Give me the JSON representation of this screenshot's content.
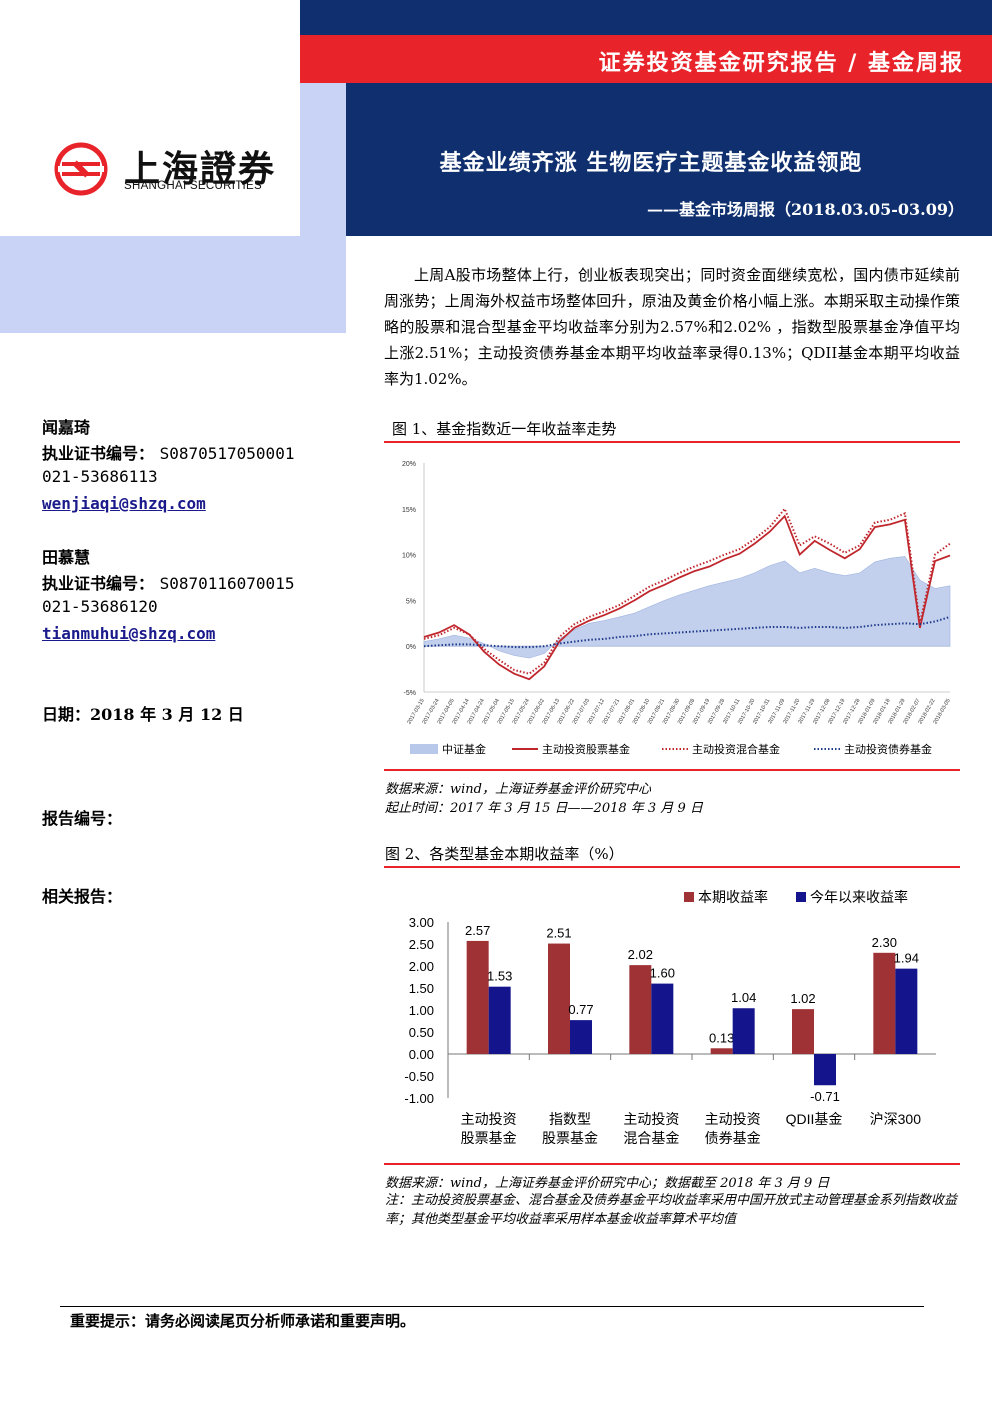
{
  "header": {
    "banner": "证券投资基金研究报告 / 基金周报",
    "title": "基金业绩齐涨  生物医疗主题基金收益领跑",
    "subtitle": "——基金市场周报（2018.03.05-03.09）",
    "colors": {
      "navy": "#0f2f6e",
      "red": "#e8232a",
      "light_blue": "#c9d3f5"
    }
  },
  "logo": {
    "cn": "上海證券",
    "en": "SHANGHAI SECURITIES",
    "icon": "shanghai-securities-logo-icon"
  },
  "analysts": [
    {
      "name": "闻嘉琦",
      "cert_label": "执业证书编号：",
      "cert": "S0870517050001",
      "phone": "021-53686113",
      "email": "wenjiaqi@shzq.com"
    },
    {
      "name": "田慕慧",
      "cert_label": "执业证书编号：",
      "cert": "S0870116070015",
      "phone": "021-53686120",
      "email": "tianmuhui@shzq.com"
    }
  ],
  "meta": {
    "date": "日期：2018 年 3 月 12 日",
    "report_no": "报告编号：",
    "related": "相关报告："
  },
  "summary": "上周A股市场整体上行，创业板表现突出；同时资金面继续宽松，国内债市延续前周涨势；上周海外权益市场整体回升，原油及黄金价格小幅上涨。本期采取主动操作策略的股票和混合型基金平均收益率分别为2.57%和2.02% ，指数型股票基金净值平均上涨2.51%；主动投资债券基金本期平均收益率录得0.13%；QDII基金本期平均收益率为1.02%。",
  "figure1": {
    "title": "图 1、基金指数近一年收益率走势",
    "source": "数据来源：wind，上海证券基金评价研究中心",
    "period": "起止时间：2017 年 3 月 15 日——2018 年 3 月 9 日"
  },
  "figure2": {
    "title": "图 2、各类型基金本期收益率（%）",
    "source": "数据来源：wind，上海证券基金评价研究中心；数据截至 2018 年 3 月 9 日",
    "note": "注：主动投资股票基金、混合基金及债券基金平均收益率采用中国开放式主动管理基金系列指数收益率；其他类型基金平均收益率采用样本基金收益率算术平均值"
  },
  "chart_data": [
    {
      "type": "line",
      "x": [
        "2017-03-15",
        "2017-03-24",
        "2017-04-05",
        "2017-04-14",
        "2017-04-24",
        "2017-05-04",
        "2017-05-15",
        "2017-05-24",
        "2017-06-02",
        "2017-06-13",
        "2017-06-22",
        "2017-07-03",
        "2017-07-12",
        "2017-07-21",
        "2017-08-01",
        "2017-08-10",
        "2017-08-21",
        "2017-08-30",
        "2017-09-08",
        "2017-09-19",
        "2017-09-28",
        "2017-10-11",
        "2017-10-20",
        "2017-10-31",
        "2017-11-09",
        "2017-11-20",
        "2017-11-29",
        "2017-12-08",
        "2017-12-19",
        "2017-12-28",
        "2018-01-09",
        "2018-01-18",
        "2018-01-29",
        "2018-02-07",
        "2018-02-22",
        "2018-03-05"
      ],
      "yticks": [
        "20%",
        "15%",
        "10%",
        "5%",
        "0%",
        "-5%"
      ],
      "ylim": [
        -5,
        20
      ],
      "series": [
        {
          "name": "中证基金",
          "style": "area",
          "color": "#b8c8ea",
          "values": [
            0.5,
            0.8,
            1.2,
            0.9,
            0.3,
            -0.5,
            -1.0,
            -1.3,
            -0.8,
            0.8,
            1.8,
            2.5,
            2.8,
            3.2,
            3.6,
            4.3,
            5.0,
            5.6,
            6.1,
            6.6,
            7.0,
            7.4,
            8.0,
            8.8,
            9.3,
            8.0,
            8.5,
            8.0,
            7.7,
            8.0,
            9.2,
            9.6,
            9.8,
            7.2,
            6.3,
            6.6
          ]
        },
        {
          "name": "主动投资股票基金",
          "style": "solid",
          "color": "#c0272d",
          "values": [
            1.0,
            1.5,
            2.3,
            1.3,
            -0.6,
            -2.0,
            -3.0,
            -3.6,
            -2.2,
            0.5,
            2.0,
            2.8,
            3.4,
            4.1,
            5.0,
            6.0,
            6.7,
            7.5,
            8.2,
            8.7,
            9.5,
            10.1,
            11.2,
            12.5,
            14.2,
            10.0,
            11.5,
            10.5,
            9.6,
            10.6,
            13.0,
            13.3,
            13.8,
            2.0,
            9.3,
            9.9
          ]
        },
        {
          "name": "主动投资混合基金",
          "style": "dotted",
          "color": "#c0272d",
          "values": [
            0.8,
            1.2,
            2.0,
            1.3,
            -0.3,
            -1.5,
            -2.6,
            -3.0,
            -1.8,
            1.0,
            2.4,
            3.2,
            3.8,
            4.5,
            5.5,
            6.5,
            7.2,
            8.0,
            8.7,
            9.3,
            10.0,
            10.6,
            11.7,
            13.0,
            15.0,
            11.0,
            12.0,
            11.2,
            10.2,
            11.0,
            13.5,
            13.8,
            14.5,
            2.5,
            10.0,
            11.2
          ]
        },
        {
          "name": "主动投资债券基金",
          "style": "dotted",
          "color": "#1e3a8a",
          "values": [
            0.0,
            0.1,
            0.2,
            0.2,
            0.1,
            0.0,
            -0.1,
            -0.1,
            0.0,
            0.3,
            0.5,
            0.7,
            0.8,
            1.0,
            1.1,
            1.3,
            1.4,
            1.5,
            1.6,
            1.7,
            1.8,
            1.9,
            2.0,
            2.1,
            2.1,
            2.0,
            2.1,
            2.1,
            2.0,
            2.1,
            2.3,
            2.4,
            2.5,
            2.4,
            2.7,
            3.2
          ]
        }
      ]
    },
    {
      "type": "bar",
      "categories": [
        [
          "主动投资",
          "股票基金"
        ],
        [
          "指数型",
          "股票基金"
        ],
        [
          "主动投资",
          "混合基金"
        ],
        [
          "主动投资",
          "债券基金"
        ],
        [
          "QDII基金"
        ],
        [
          "沪深300"
        ]
      ],
      "yticks": [
        "3.00",
        "2.50",
        "2.00",
        "1.50",
        "1.00",
        "0.50",
        "0.00",
        "-0.50",
        "-1.00"
      ],
      "ylim": [
        -1.0,
        3.0
      ],
      "series": [
        {
          "name": "本期收益率",
          "color": "#9e3235",
          "values": [
            2.57,
            2.51,
            2.02,
            0.13,
            1.02,
            2.3
          ],
          "labels": [
            "2.57",
            "2.51",
            "2.02",
            "0.13",
            "1.02",
            "2.30"
          ]
        },
        {
          "name": "今年以来收益率",
          "color": "#14148c",
          "values": [
            1.53,
            0.77,
            1.6,
            1.04,
            -0.71,
            1.94
          ],
          "labels": [
            "1.53",
            "0.77",
            "1.60",
            "1.04",
            "-0.71",
            "1.94"
          ]
        }
      ]
    }
  ],
  "footer": "重要提示：请务必阅读尾页分析师承诺和重要声明。"
}
